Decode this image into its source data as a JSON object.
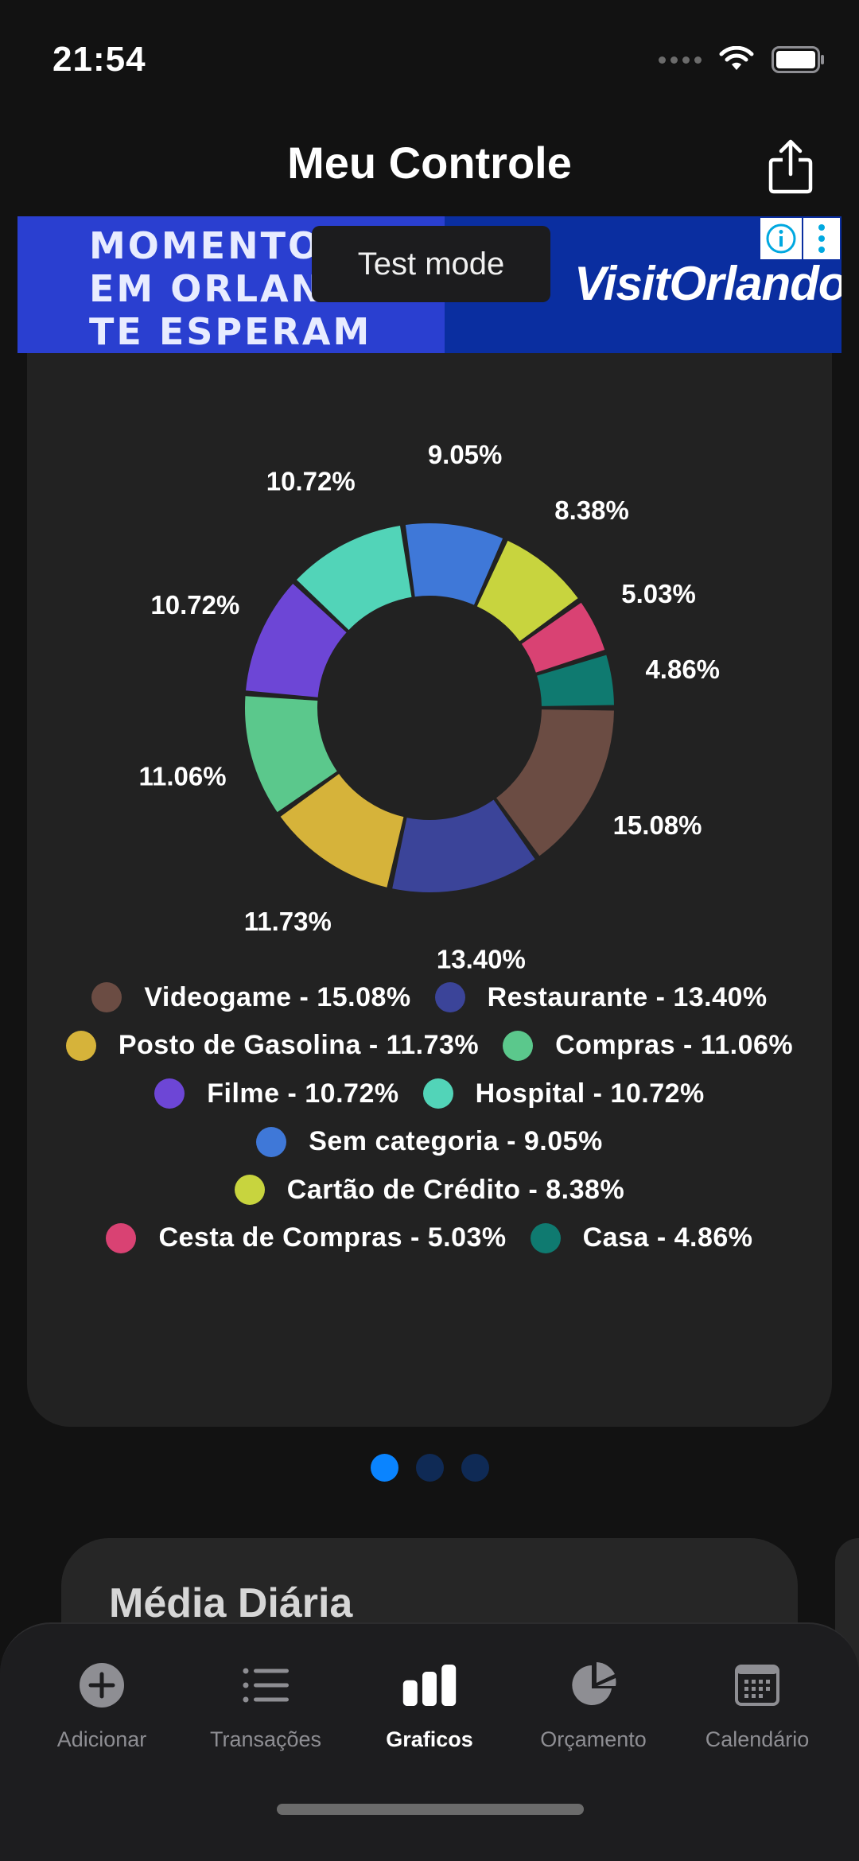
{
  "status": {
    "time": "21:54"
  },
  "header": {
    "title": "Meu Controle"
  },
  "ad": {
    "headline": [
      "MOMENTOS",
      "EM ORLANDO",
      "TE ESPERAM"
    ],
    "brand": "VisitOrlando.",
    "test_mode": "Test mode"
  },
  "chart_data": {
    "type": "pie",
    "donut": true,
    "slices": [
      {
        "label": "Videogame",
        "value": 15.08,
        "display": "15.08%",
        "color": "#6b4c43",
        "legend": "Videogame - 15.08%"
      },
      {
        "label": "Restaurante",
        "value": 13.4,
        "display": "13.40%",
        "color": "#3b4499",
        "legend": "Restaurante - 13.40%"
      },
      {
        "label": "Posto de Gasolina",
        "value": 11.73,
        "display": "11.73%",
        "color": "#d6b33a",
        "legend": "Posto de Gasolina - 11.73%"
      },
      {
        "label": "Compras",
        "value": 11.06,
        "display": "11.06%",
        "color": "#5bc88c",
        "legend": "Compras - 11.06%"
      },
      {
        "label": "Filme",
        "value": 10.72,
        "display": "10.72%",
        "color": "#6d46d6",
        "legend": "Filme - 10.72%"
      },
      {
        "label": "Hospital",
        "value": 10.72,
        "display": "10.72%",
        "color": "#52d4b8",
        "legend": "Hospital - 10.72%"
      },
      {
        "label": "Sem categoria",
        "value": 9.05,
        "display": "9.05%",
        "color": "#3f78d8",
        "legend": "Sem categoria - 9.05%"
      },
      {
        "label": "Cartão de Crédito",
        "value": 8.38,
        "display": "8.38%",
        "color": "#c8d43e",
        "legend": "Cartão de Crédito - 8.38%"
      },
      {
        "label": "Cesta de Compras",
        "value": 5.03,
        "display": "5.03%",
        "color": "#d94273",
        "legend": "Cesta de Compras - 5.03%"
      },
      {
        "label": "Casa",
        "value": 4.86,
        "display": "4.86%",
        "color": "#0f7a70",
        "legend": "Casa - 4.86%"
      }
    ],
    "legend_rows": [
      [
        0,
        1
      ],
      [
        2,
        3
      ],
      [
        4,
        5
      ],
      [
        6
      ],
      [
        7
      ],
      [
        8,
        9
      ]
    ]
  },
  "pager": {
    "count": 3,
    "active": 0,
    "active_color": "#0a84ff",
    "inactive_color": "#0f2a55"
  },
  "daily_card": {
    "title": "Média Diária"
  },
  "tabs": [
    {
      "label": "Adicionar",
      "icon": "plus-circle-icon",
      "active": false
    },
    {
      "label": "Transações",
      "icon": "list-icon",
      "active": false
    },
    {
      "label": "Graficos",
      "icon": "bar-chart-icon",
      "active": true
    },
    {
      "label": "Orçamento",
      "icon": "pie-chart-icon",
      "active": false
    },
    {
      "label": "Calendário",
      "icon": "calendar-icon",
      "active": false
    }
  ]
}
